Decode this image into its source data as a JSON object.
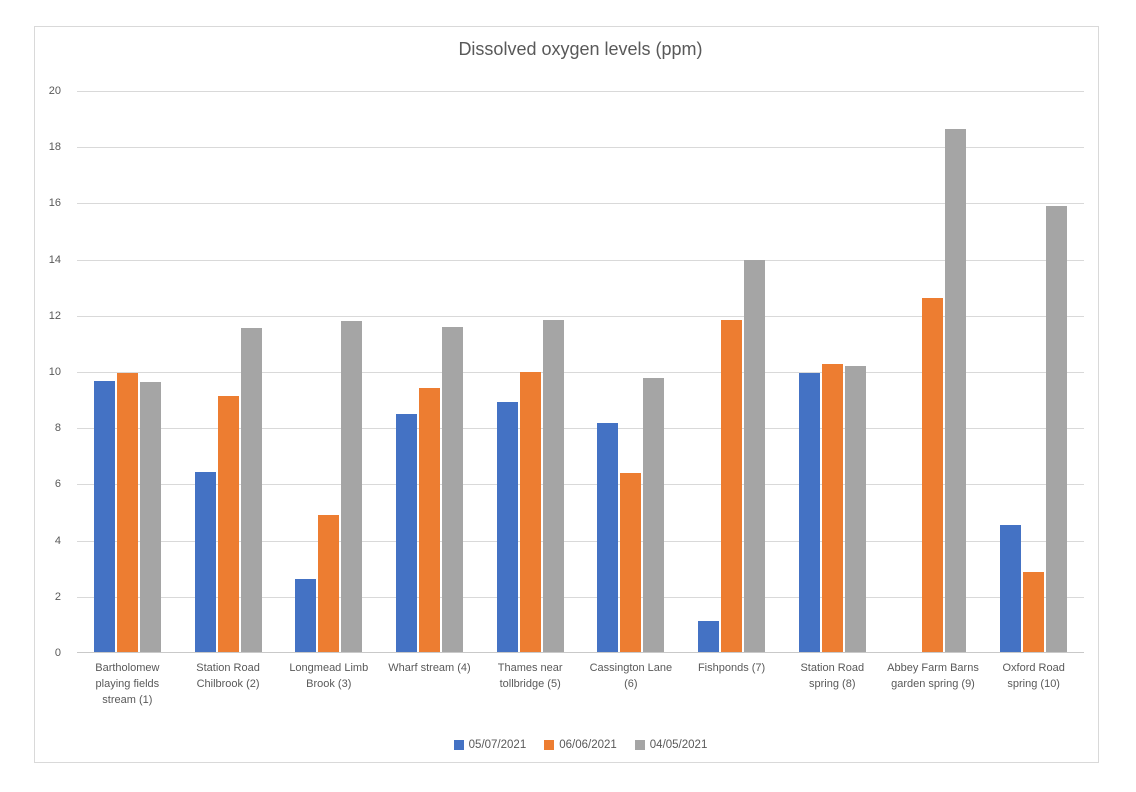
{
  "chart_data": {
    "type": "bar",
    "title": "Dissolved oxygen levels (ppm)",
    "categories": [
      "Bartholomew playing fields stream (1)",
      "Station Road Chilbrook (2)",
      "Longmead Limb Brook (3)",
      "Wharf stream (4)",
      "Thames near tollbridge (5)",
      "Cassington Lane (6)",
      "Fishponds (7)",
      "Station Road spring (8)",
      "Abbey Farm Barns garden spring (9)",
      "Oxford Road spring (10)"
    ],
    "series": [
      {
        "name": "05/07/2021",
        "color": "#4472c4",
        "values": [
          9.68,
          6.45,
          2.65,
          8.5,
          8.93,
          8.18,
          1.15,
          9.95,
          0,
          4.55
        ]
      },
      {
        "name": "06/06/2021",
        "color": "#ed7d31",
        "values": [
          9.98,
          9.13,
          4.9,
          9.43,
          10.0,
          6.42,
          11.85,
          10.27,
          12.65,
          2.9
        ]
      },
      {
        "name": "04/05/2021",
        "color": "#a5a5a5",
        "values": [
          9.65,
          11.58,
          11.82,
          11.6,
          11.85,
          9.78,
          14.0,
          10.22,
          18.65,
          15.9
        ]
      }
    ],
    "ylim": [
      0,
      20
    ],
    "ytick_step": 2,
    "grid": true,
    "legend_position": "bottom",
    "xlabel": "",
    "ylabel": ""
  },
  "colors": {
    "gridline": "#d9d9d9",
    "axis_text": "#595959",
    "title_text": "#595959",
    "frame_border": "#d9d9d9",
    "background": "#ffffff"
  }
}
